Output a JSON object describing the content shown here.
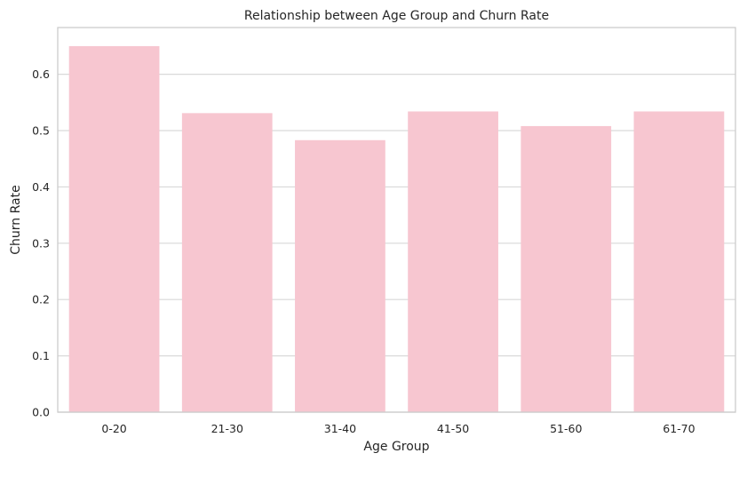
{
  "chart_data": {
    "type": "bar",
    "title": "Relationship between Age Group and Churn Rate",
    "xlabel": "Age Group",
    "ylabel": "Churn Rate",
    "categories": [
      "0-20",
      "21-30",
      "31-40",
      "41-50",
      "51-60",
      "61-70"
    ],
    "values": [
      0.65,
      0.531,
      0.483,
      0.534,
      0.508,
      0.534
    ],
    "ylim": [
      0,
      0.683
    ],
    "yticks": [
      "0.0",
      "0.1",
      "0.2",
      "0.3",
      "0.4",
      "0.5",
      "0.6"
    ],
    "grid": "horizontal",
    "bar_color": "#f7c6d0",
    "grid_color": "#d9d9d9",
    "frame_color": "#cccccc"
  }
}
